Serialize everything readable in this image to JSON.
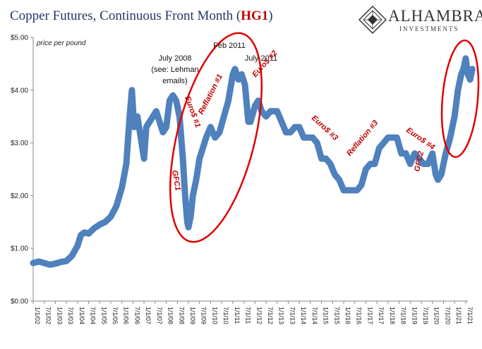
{
  "header": {
    "title_prefix": "Copper Futures, Continuous Front Month (",
    "title_symbol": "HG1",
    "title_suffix": ")",
    "logo_name": "ALHAMBRA",
    "logo_subtitle": "INVESTMENTS"
  },
  "colors": {
    "series": "#4f81bd",
    "annotation": "#c00000",
    "title": "#1f3864"
  },
  "chart_data": {
    "type": "line",
    "title": "Copper Futures, Continuous Front Month (HG1)",
    "ylabel": "price per pound",
    "xlabel": "",
    "ylim": [
      0,
      5
    ],
    "yticks": [
      "$0.00",
      "$1.00",
      "$2.00",
      "$3.00",
      "$4.00",
      "$5.00"
    ],
    "xticks": [
      "1/1/02",
      "7/1/02",
      "1/1/03",
      "7/1/03",
      "1/1/04",
      "7/1/04",
      "1/1/05",
      "7/1/05",
      "1/1/06",
      "7/1/06",
      "1/1/07",
      "7/1/07",
      "1/1/08",
      "7/1/08",
      "1/1/09",
      "7/1/09",
      "1/1/10",
      "7/1/10",
      "1/1/11",
      "7/1/11",
      "1/1/12",
      "7/1/12",
      "1/1/13",
      "7/1/13",
      "1/1/14",
      "7/1/14",
      "1/1/15",
      "7/1/15",
      "1/1/16",
      "7/1/16",
      "1/1/17",
      "7/1/17",
      "1/1/18",
      "7/1/18",
      "1/1/19",
      "7/1/19",
      "1/1/20",
      "7/1/20",
      "1/1/21",
      "7/1/21"
    ],
    "grid": false,
    "series": [
      {
        "x": [
          2002.0,
          2002.25,
          2002.5,
          2002.75,
          2003.0,
          2003.25,
          2003.5,
          2003.75,
          2004.0,
          2004.15,
          2004.3,
          2004.5,
          2004.75,
          2005.0,
          2005.25,
          2005.5,
          2005.75,
          2006.0,
          2006.2,
          2006.35,
          2006.45,
          2006.55,
          2006.7,
          2006.85,
          2007.0,
          2007.1,
          2007.25,
          2007.4,
          2007.55,
          2007.7,
          2007.85,
          2008.0,
          2008.15,
          2008.3,
          2008.45,
          2008.6,
          2008.75,
          2008.85,
          2008.95,
          2009.0,
          2009.1,
          2009.2,
          2009.35,
          2009.5,
          2009.65,
          2009.8,
          2010.0,
          2010.2,
          2010.4,
          2010.6,
          2010.8,
          2011.0,
          2011.1,
          2011.25,
          2011.4,
          2011.55,
          2011.7,
          2011.8,
          2012.0,
          2012.15,
          2012.3,
          2012.5,
          2012.7,
          2012.9,
          2013.0,
          2013.2,
          2013.4,
          2013.6,
          2013.8,
          2014.0,
          2014.2,
          2014.4,
          2014.6,
          2014.8,
          2015.0,
          2015.2,
          2015.4,
          2015.6,
          2015.8,
          2016.0,
          2016.2,
          2016.4,
          2016.6,
          2016.8,
          2017.0,
          2017.2,
          2017.4,
          2017.6,
          2017.8,
          2018.0,
          2018.2,
          2018.4,
          2018.6,
          2018.8,
          2019.0,
          2019.2,
          2019.4,
          2019.6,
          2019.8,
          2020.0,
          2020.15,
          2020.25,
          2020.4,
          2020.6,
          2020.8,
          2021.0,
          2021.15,
          2021.3,
          2021.4,
          2021.5,
          2021.6,
          2021.7,
          2021.8
        ],
        "y": [
          0.72,
          0.75,
          0.72,
          0.69,
          0.71,
          0.74,
          0.76,
          0.86,
          1.05,
          1.25,
          1.3,
          1.28,
          1.38,
          1.45,
          1.5,
          1.6,
          1.8,
          2.15,
          2.6,
          3.5,
          4.0,
          3.3,
          3.5,
          3.1,
          2.7,
          3.3,
          3.4,
          3.5,
          3.6,
          3.4,
          3.2,
          3.3,
          3.8,
          3.9,
          3.8,
          3.5,
          2.7,
          2.0,
          1.5,
          1.4,
          1.6,
          2.0,
          2.3,
          2.7,
          2.9,
          3.1,
          3.3,
          3.1,
          3.2,
          3.5,
          3.8,
          4.3,
          4.4,
          4.2,
          4.3,
          4.1,
          3.4,
          3.4,
          3.7,
          3.8,
          3.6,
          3.5,
          3.6,
          3.6,
          3.6,
          3.4,
          3.2,
          3.2,
          3.3,
          3.3,
          3.1,
          3.1,
          3.1,
          3.0,
          2.7,
          2.7,
          2.6,
          2.4,
          2.3,
          2.1,
          2.1,
          2.1,
          2.1,
          2.2,
          2.5,
          2.6,
          2.6,
          2.9,
          3.0,
          3.1,
          3.1,
          3.1,
          2.8,
          2.8,
          2.6,
          2.8,
          2.7,
          2.6,
          2.6,
          2.8,
          2.4,
          2.3,
          2.4,
          2.8,
          3.1,
          3.5,
          4.0,
          4.3,
          4.4,
          4.6,
          4.3,
          4.2,
          4.4
        ]
      }
    ],
    "annotations": [
      {
        "text": "price per pound"
      },
      {
        "text": "July 2008"
      },
      {
        "text": "(see: Lehman"
      },
      {
        "text": "emails)"
      },
      {
        "text": "Feb 2011"
      },
      {
        "text": "July 2011"
      },
      {
        "text": "Euro$ #1"
      },
      {
        "text": "Reflation #1"
      },
      {
        "text": "GFC1"
      },
      {
        "text": "Euro$ #2"
      },
      {
        "text": "Euro$ #3"
      },
      {
        "text": "Reflation #3"
      },
      {
        "text": "Euro$ #4"
      },
      {
        "text": "GFC2"
      }
    ]
  }
}
